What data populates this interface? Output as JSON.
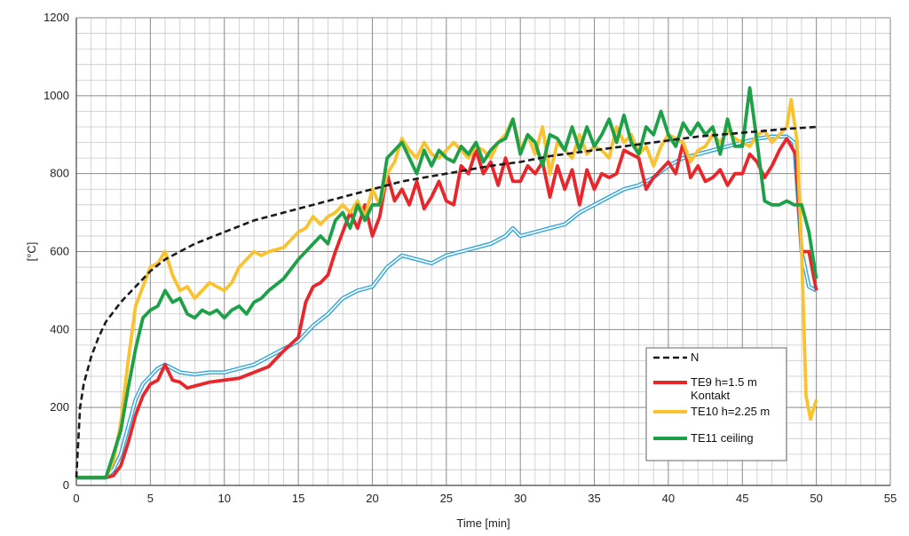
{
  "chart_data": {
    "type": "line",
    "xlabel": "Time [min]",
    "ylabel": "[°C]",
    "xlim": [
      0,
      55
    ],
    "ylim": [
      0,
      1200
    ],
    "xticks": [
      0,
      5,
      10,
      15,
      20,
      25,
      30,
      35,
      40,
      45,
      50,
      55
    ],
    "yticks": [
      0,
      200,
      400,
      600,
      800,
      1000,
      1200
    ],
    "grid": true,
    "legend_position": "bottom-right",
    "series": [
      {
        "name": "N",
        "color": "#1a1a1a",
        "style": "dashed",
        "x": [
          0,
          0.25,
          0.5,
          1,
          1.5,
          2,
          3,
          4,
          5,
          6,
          8,
          10,
          12,
          15,
          18,
          20,
          22,
          25,
          28,
          30,
          32,
          35,
          38,
          40,
          42,
          45,
          48,
          50
        ],
        "y": [
          20,
          200,
          260,
          330,
          380,
          420,
          470,
          510,
          550,
          580,
          620,
          650,
          680,
          710,
          740,
          760,
          780,
          800,
          820,
          830,
          845,
          860,
          875,
          885,
          895,
          905,
          915,
          920
        ]
      },
      {
        "name": "TE9 h=1.5 m Kontakt",
        "color": "#e8262b",
        "style": "solid",
        "x": [
          0,
          2,
          2.5,
          3,
          3.5,
          4,
          4.5,
          5,
          5.5,
          6,
          6.5,
          7,
          7.5,
          8,
          9,
          10,
          11,
          12,
          13,
          14,
          15,
          15.5,
          16,
          16.5,
          17,
          17.5,
          18,
          18.5,
          19,
          19.5,
          20,
          20.5,
          21,
          21.5,
          22,
          22.5,
          23,
          23.5,
          24,
          24.5,
          25,
          25.5,
          26,
          26.5,
          27,
          27.5,
          28,
          28.5,
          29,
          29.5,
          30,
          30.5,
          31,
          31.5,
          32,
          32.5,
          33,
          33.5,
          34,
          34.5,
          35,
          35.5,
          36,
          36.5,
          37,
          37.5,
          38,
          38.5,
          39,
          39.5,
          40,
          40.5,
          41,
          41.5,
          42,
          42.5,
          43,
          43.5,
          44,
          44.5,
          45,
          45.5,
          46,
          46.5,
          47,
          47.5,
          48,
          48.3,
          48.6,
          49,
          49.5,
          50
        ],
        "y": [
          20,
          20,
          25,
          50,
          110,
          180,
          230,
          260,
          270,
          310,
          270,
          265,
          250,
          255,
          265,
          270,
          275,
          290,
          305,
          345,
          380,
          470,
          510,
          520,
          540,
          600,
          650,
          700,
          660,
          720,
          640,
          690,
          800,
          730,
          760,
          720,
          780,
          710,
          740,
          780,
          730,
          720,
          820,
          800,
          860,
          800,
          830,
          770,
          840,
          780,
          780,
          820,
          800,
          830,
          740,
          820,
          760,
          810,
          720,
          810,
          760,
          800,
          790,
          800,
          860,
          850,
          840,
          760,
          790,
          810,
          830,
          800,
          880,
          790,
          820,
          780,
          790,
          810,
          770,
          800,
          800,
          850,
          830,
          790,
          820,
          860,
          890,
          870,
          850,
          600,
          600,
          500
        ]
      },
      {
        "name": "TE10 h=2.25 m",
        "color": "#f9c22e",
        "style": "solid",
        "x": [
          0,
          2,
          2.5,
          3,
          3.5,
          4,
          4.5,
          5,
          5.5,
          6,
          6.5,
          7,
          7.5,
          8,
          8.5,
          9,
          9.5,
          10,
          10.5,
          11,
          11.5,
          12,
          12.5,
          13,
          14,
          15,
          15.5,
          16,
          16.5,
          17,
          17.5,
          18,
          18.5,
          19,
          19.5,
          20,
          20.5,
          21,
          21.5,
          22,
          22.5,
          23,
          23.5,
          24,
          24.5,
          25,
          25.5,
          26,
          26.5,
          27,
          27.5,
          28,
          28.5,
          29,
          29.5,
          30,
          30.5,
          31,
          31.5,
          32,
          32.5,
          33,
          33.5,
          34,
          34.5,
          35,
          35.5,
          36,
          36.5,
          37,
          37.5,
          38,
          38.5,
          39,
          39.5,
          40,
          40.5,
          41,
          41.5,
          42,
          42.5,
          43,
          43.5,
          44,
          44.5,
          45,
          45.5,
          46,
          46.5,
          47,
          47.5,
          48,
          48.3,
          48.7,
          49,
          49.3,
          49.6,
          50
        ],
        "y": [
          20,
          20,
          60,
          160,
          320,
          460,
          510,
          560,
          570,
          600,
          540,
          500,
          510,
          480,
          500,
          520,
          510,
          500,
          520,
          560,
          580,
          600,
          590,
          600,
          610,
          650,
          660,
          690,
          670,
          690,
          700,
          720,
          700,
          730,
          690,
          760,
          720,
          800,
          830,
          890,
          860,
          840,
          880,
          850,
          840,
          860,
          880,
          860,
          840,
          870,
          860,
          840,
          880,
          900,
          940,
          860,
          900,
          850,
          920,
          800,
          880,
          860,
          840,
          900,
          850,
          870,
          860,
          840,
          920,
          880,
          900,
          850,
          870,
          820,
          870,
          900,
          890,
          880,
          830,
          860,
          870,
          900,
          880,
          910,
          890,
          880,
          870,
          900,
          910,
          880,
          900,
          920,
          990,
          880,
          600,
          230,
          170,
          220
        ]
      },
      {
        "name": "TE11 ceiling",
        "color": "#1ea048",
        "style": "solid",
        "x": [
          0,
          2,
          2.5,
          3,
          3.5,
          4,
          4.5,
          5,
          5.5,
          6,
          6.5,
          7,
          7.5,
          8,
          8.5,
          9,
          9.5,
          10,
          10.5,
          11,
          11.5,
          12,
          12.5,
          13,
          14,
          15,
          15.5,
          16,
          16.5,
          17,
          17.5,
          18,
          18.5,
          19,
          19.5,
          20,
          20.5,
          21,
          21.5,
          22,
          22.5,
          23,
          23.5,
          24,
          24.5,
          25,
          25.5,
          26,
          26.5,
          27,
          27.5,
          28,
          28.5,
          29,
          29.5,
          30,
          30.5,
          31,
          31.5,
          32,
          32.5,
          33,
          33.5,
          34,
          34.5,
          35,
          35.5,
          36,
          36.5,
          37,
          37.5,
          38,
          38.5,
          39,
          39.5,
          40,
          40.5,
          41,
          41.5,
          42,
          42.5,
          43,
          43.5,
          44,
          44.5,
          45,
          45.5,
          46,
          46.5,
          47,
          47.5,
          48,
          48.5,
          49,
          49.5,
          50
        ],
        "y": [
          20,
          20,
          80,
          140,
          250,
          350,
          430,
          450,
          460,
          500,
          470,
          480,
          440,
          430,
          450,
          440,
          450,
          430,
          450,
          460,
          440,
          470,
          480,
          500,
          530,
          580,
          600,
          620,
          640,
          620,
          680,
          700,
          660,
          720,
          680,
          720,
          720,
          840,
          860,
          880,
          840,
          800,
          860,
          820,
          860,
          840,
          830,
          870,
          850,
          880,
          830,
          860,
          880,
          890,
          940,
          850,
          900,
          880,
          820,
          900,
          890,
          860,
          920,
          860,
          920,
          870,
          900,
          940,
          880,
          950,
          880,
          850,
          920,
          900,
          960,
          900,
          870,
          930,
          900,
          930,
          900,
          920,
          850,
          940,
          870,
          870,
          1020,
          880,
          730,
          720,
          720,
          730,
          720,
          720,
          650,
          530
        ]
      },
      {
        "name": "",
        "color": "#2aa4dc",
        "style": "double",
        "x": [
          0,
          2,
          2.5,
          3,
          3.5,
          4,
          4.5,
          5,
          5.5,
          6,
          6.5,
          7,
          8,
          9,
          10,
          11,
          12,
          13,
          14,
          15,
          16,
          17,
          18,
          19,
          20,
          21,
          22,
          23,
          24,
          25,
          26,
          27,
          28,
          29,
          29.5,
          30,
          31,
          32,
          33,
          34,
          35,
          36,
          37,
          38,
          39,
          40,
          41,
          42,
          43,
          44,
          45,
          46,
          47,
          48,
          48.5,
          49,
          49.5,
          50
        ],
        "y": [
          20,
          20,
          40,
          80,
          150,
          220,
          260,
          280,
          300,
          310,
          300,
          290,
          285,
          290,
          290,
          300,
          310,
          330,
          350,
          370,
          410,
          440,
          480,
          500,
          510,
          560,
          590,
          580,
          570,
          590,
          600,
          610,
          620,
          640,
          660,
          640,
          650,
          660,
          670,
          700,
          720,
          740,
          760,
          770,
          790,
          820,
          840,
          850,
          860,
          870,
          880,
          890,
          895,
          895,
          880,
          600,
          510,
          500
        ]
      }
    ]
  }
}
